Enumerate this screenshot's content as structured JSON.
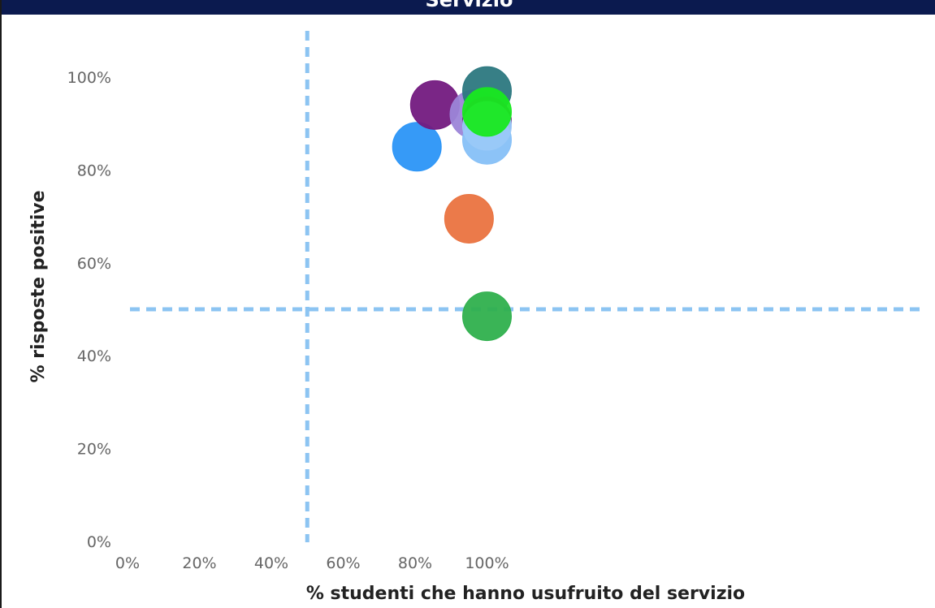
{
  "header": {
    "title": "Servizio"
  },
  "colors": {
    "header_bg": "#0b1a4f",
    "reference_line": "#8cc4f2"
  },
  "chart_data": {
    "type": "scatter",
    "title": "Servizio",
    "xlabel": "% studenti che hanno usufruito del servizio",
    "ylabel": "% risposte positive",
    "xlim": [
      0,
      110
    ],
    "ylim": [
      0,
      110
    ],
    "x_ticks": [
      "0%",
      "20%",
      "40%",
      "60%",
      "80%",
      "100%"
    ],
    "y_ticks": [
      "0%",
      "20%",
      "40%",
      "60%",
      "80%",
      "100%"
    ],
    "grid": false,
    "reference_lines": {
      "x": 50,
      "y": 50
    },
    "points": [
      {
        "x": 80.5,
        "y": 85.0,
        "color": "#2b95f7"
      },
      {
        "x": 85.5,
        "y": 94.0,
        "color": "#731a80"
      },
      {
        "x": 95.0,
        "y": 69.5,
        "color": "#ea7340"
      },
      {
        "x": 96.5,
        "y": 92.0,
        "color": "#9c85d8"
      },
      {
        "x": 100.0,
        "y": 97.0,
        "color": "#2c7880"
      },
      {
        "x": 100.0,
        "y": 90.5,
        "color": "#6a1f78"
      },
      {
        "x": 100.0,
        "y": 86.5,
        "color": "#86c0f7"
      },
      {
        "x": 100.0,
        "y": 89.5,
        "color": "#9ac9f8"
      },
      {
        "x": 100.0,
        "y": 92.5,
        "color": "#18e91f"
      },
      {
        "x": 100.0,
        "y": 48.5,
        "color": "#2fb04d"
      }
    ]
  }
}
